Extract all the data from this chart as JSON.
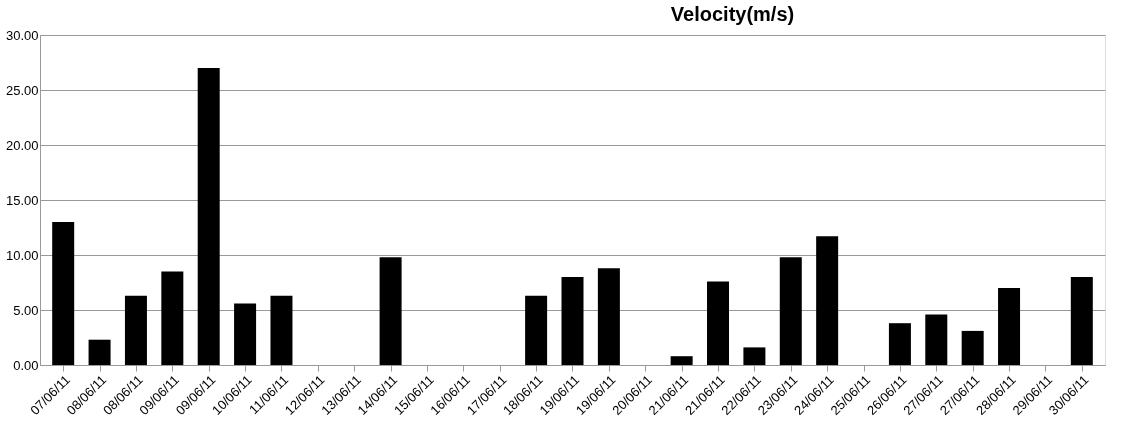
{
  "chart_data": {
    "type": "bar",
    "title": "Velocity(m/s)",
    "categories": [
      "07/06/11",
      "08/06/11",
      "08/06/11",
      "09/06/11",
      "09/06/11",
      "10/06/11",
      "11/06/11",
      "12/06/11",
      "13/06/11",
      "14/06/11",
      "15/06/11",
      "16/06/11",
      "17/06/11",
      "18/06/11",
      "19/06/11",
      "19/06/11",
      "20/06/11",
      "21/06/11",
      "21/06/11",
      "22/06/11",
      "23/06/11",
      "24/06/11",
      "25/06/11",
      "26/06/11",
      "27/06/11",
      "27/06/11",
      "28/06/11",
      "29/06/11",
      "30/06/11"
    ],
    "values": [
      13.0,
      2.3,
      6.3,
      8.5,
      27.0,
      5.6,
      6.3,
      null,
      null,
      9.8,
      null,
      null,
      null,
      6.3,
      8.0,
      8.8,
      null,
      0.8,
      7.6,
      1.6,
      9.8,
      11.7,
      null,
      3.8,
      4.6,
      3.1,
      7.0,
      null,
      8.0
    ],
    "color": "#000000",
    "ylim": [
      0,
      30
    ],
    "yticks": [
      {
        "value": 0,
        "label": "0.00"
      },
      {
        "value": 5,
        "label": "5.00"
      },
      {
        "value": 10,
        "label": "10.00"
      },
      {
        "value": 15,
        "label": "15.00"
      },
      {
        "value": 20,
        "label": "20.00"
      },
      {
        "value": 25,
        "label": "25.00"
      },
      {
        "value": 30,
        "label": "30.00"
      }
    ],
    "grid": "y"
  }
}
